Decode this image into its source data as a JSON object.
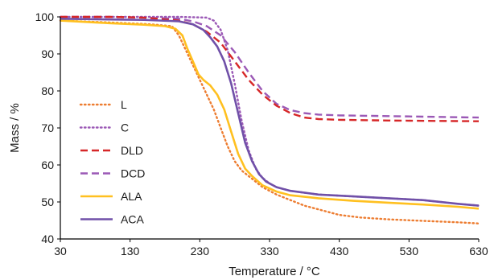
{
  "chart_data": {
    "type": "line",
    "xlabel": "Temperature / °C",
    "ylabel": "Mass / %",
    "xlim": [
      30,
      630
    ],
    "ylim": [
      40,
      100
    ],
    "xticks": [
      30,
      130,
      230,
      330,
      430,
      530,
      630
    ],
    "yticks": [
      40,
      50,
      60,
      70,
      80,
      90,
      100
    ],
    "grid": false,
    "legend_position": "left",
    "series": [
      {
        "name": "L",
        "color": "#ed7d31",
        "dash": "dotted",
        "x": [
          30,
          100,
          160,
          190,
          200,
          210,
          220,
          230,
          240,
          250,
          260,
          270,
          280,
          290,
          300,
          320,
          340,
          360,
          380,
          400,
          430,
          460,
          500,
          550,
          600,
          630
        ],
        "y": [
          99,
          98.5,
          98,
          97.5,
          95,
          91,
          87,
          83,
          79,
          75,
          70,
          65,
          61,
          58.5,
          57,
          54,
          52,
          50.5,
          49,
          48,
          46.5,
          45.8,
          45.3,
          44.9,
          44.5,
          44.2
        ]
      },
      {
        "name": "C",
        "color": "#9b59b6",
        "dash": "dotted",
        "x": [
          30,
          100,
          200,
          240,
          250,
          260,
          270,
          280,
          290,
          300,
          310,
          320,
          330,
          340,
          360,
          380,
          400,
          450,
          500,
          550,
          600,
          630
        ],
        "y": [
          100,
          100,
          100,
          99.8,
          99,
          96.5,
          91,
          82,
          72,
          64,
          59,
          56.5,
          55,
          54,
          53,
          52.5,
          52,
          51.5,
          51,
          50.5,
          49.5,
          49
        ]
      },
      {
        "name": "DLD",
        "color": "#d62728",
        "dash": "dashed",
        "x": [
          30,
          100,
          150,
          200,
          220,
          240,
          260,
          280,
          300,
          320,
          340,
          360,
          380,
          400,
          430,
          500,
          630
        ],
        "y": [
          100,
          100,
          99.8,
          99,
          98,
          96,
          93,
          88,
          83,
          79,
          76,
          74,
          72.8,
          72.4,
          72.2,
          72,
          71.8
        ]
      },
      {
        "name": "DCD",
        "color": "#9b59b6",
        "dash": "dashed",
        "x": [
          30,
          100,
          150,
          200,
          220,
          240,
          260,
          280,
          300,
          320,
          340,
          360,
          380,
          400,
          430,
          500,
          630
        ],
        "y": [
          100,
          100,
          99.8,
          99.5,
          98.8,
          97.5,
          95,
          90.5,
          85,
          80,
          76.5,
          74.8,
          74,
          73.6,
          73.4,
          73.2,
          72.8
        ]
      },
      {
        "name": "ALA",
        "color": "#ffc020",
        "dash": "solid",
        "x": [
          30,
          100,
          150,
          180,
          195,
          205,
          212,
          220,
          228,
          235,
          245,
          255,
          265,
          275,
          285,
          295,
          305,
          320,
          340,
          360,
          400,
          450,
          500,
          550,
          600,
          630
        ],
        "y": [
          99,
          98.3,
          97.9,
          97.5,
          96.8,
          95,
          91.5,
          88,
          84.5,
          83,
          81.5,
          79,
          75,
          69,
          63,
          59,
          57,
          54.5,
          52.8,
          51.8,
          51,
          50.3,
          49.8,
          49.3,
          48.7,
          48.2
        ]
      },
      {
        "name": "ACA",
        "color": "#7050a8",
        "dash": "solid",
        "x": [
          30,
          100,
          150,
          200,
          220,
          235,
          245,
          255,
          265,
          275,
          285,
          295,
          305,
          315,
          325,
          340,
          360,
          400,
          450,
          500,
          550,
          600,
          630
        ],
        "y": [
          99.5,
          99.3,
          99.2,
          98.8,
          98,
          96.5,
          94.5,
          92,
          88,
          82,
          74,
          66,
          61,
          57.5,
          55.5,
          54,
          53,
          52,
          51.5,
          51,
          50.5,
          49.5,
          49
        ]
      }
    ]
  }
}
